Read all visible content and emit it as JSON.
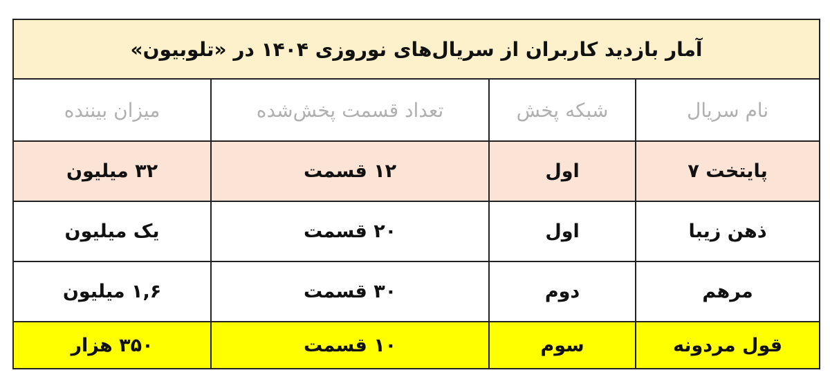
{
  "title": "آمار بازدید کاربران از سریال‌های نوروزی ۱۴۰۴  در «تلوبیون»",
  "headers": [
    "نام سریال",
    "شبکه پخش",
    "تعداد قسمت پخش‌شده",
    "میزان بیننده"
  ],
  "rows": [
    [
      "پایتخت ۷",
      "اول",
      "۱۲ قسمت",
      "۳۲ میلیون"
    ],
    [
      "ذهن زیبا",
      "اول",
      "۲۰ قسمت",
      "یک میلیون"
    ],
    [
      "مرهم",
      "دوم",
      "۳۰ قسمت",
      "۱,۶ میلیون"
    ],
    [
      "قول مردونه",
      "سوم",
      "۱۰ قسمت",
      "۳۵۰ هزار"
    ]
  ],
  "colors": {
    "title_bg": "#fdf1cc",
    "first_row_bg": "#fbe3d6",
    "highlight_row_bg": "#ffff00",
    "header_text": "#b0b0b0"
  }
}
